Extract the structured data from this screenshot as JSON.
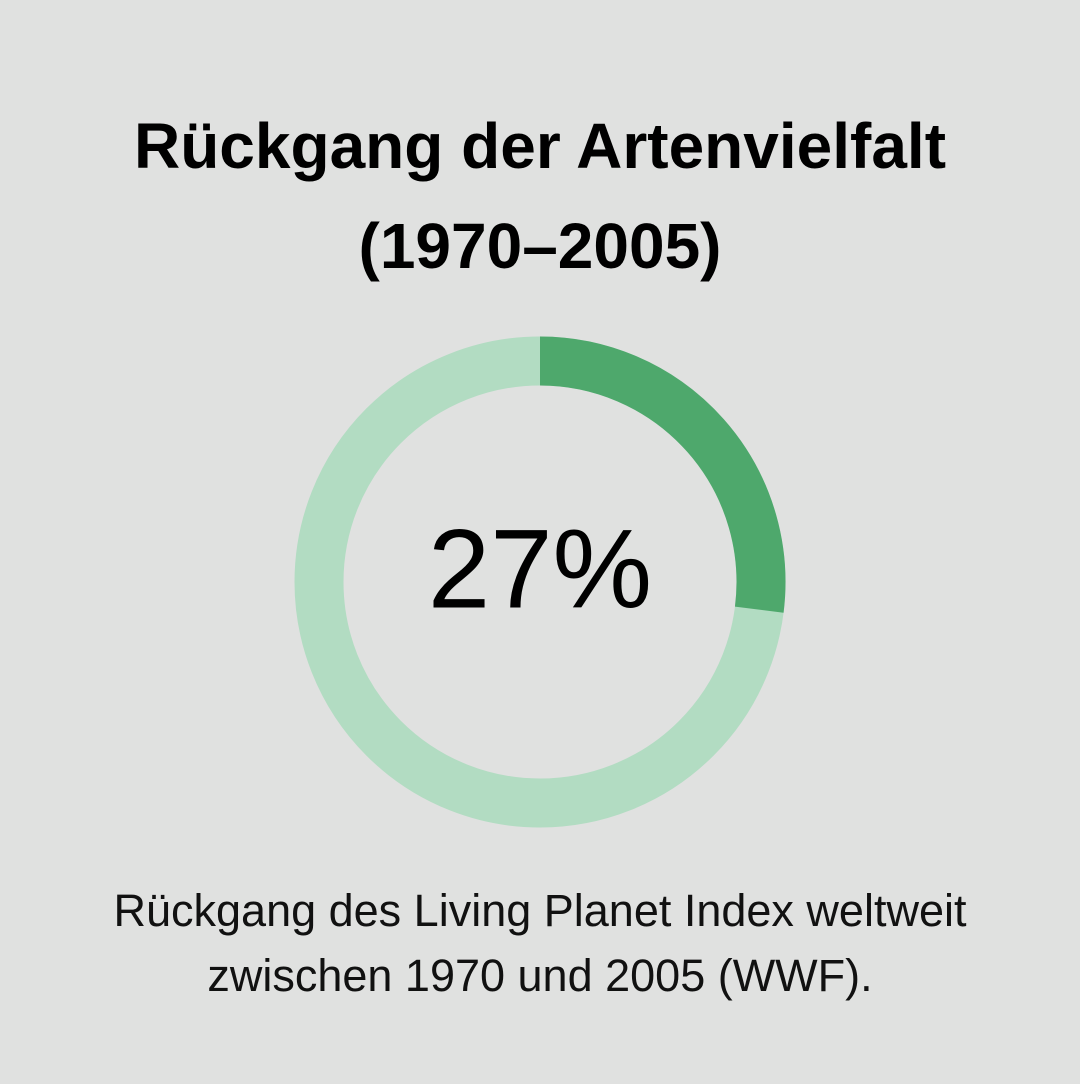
{
  "chart_data": {
    "type": "donut",
    "title": "Rückgang der Artenvielfalt (1970–2005)",
    "values": [
      27
    ],
    "value_labels": [
      "27%"
    ],
    "color": "#4ea86c",
    "track_color": "#b2dcc2",
    "caption": "Rückgang des Living Planet Index weltweit zwischen 1970 und 2005 (WWF)."
  }
}
